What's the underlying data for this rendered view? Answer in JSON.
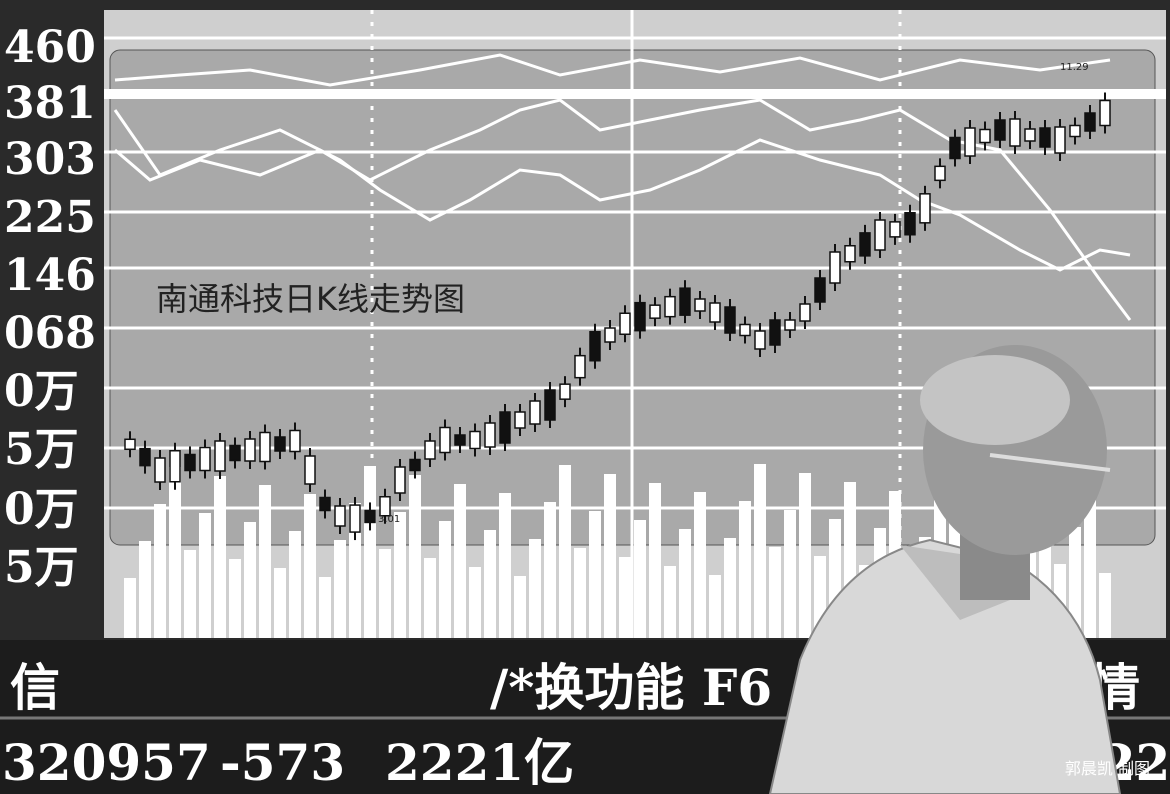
{
  "screen": {
    "axis_labels": [
      "460",
      "381",
      "303",
      "225",
      "146",
      "068",
      "0万",
      "5万",
      "0万",
      "5万"
    ],
    "chart_title": "南通科技日K线走势图",
    "candle_labels": [
      "11.29",
      "3.01"
    ],
    "ticker_row": [
      "信",
      "/*换功能 F6",
      "行情"
    ],
    "bottom_row": [
      "320957",
      "-573",
      "2221亿",
      "-22"
    ]
  },
  "credit": "郭晨凯 制图"
}
